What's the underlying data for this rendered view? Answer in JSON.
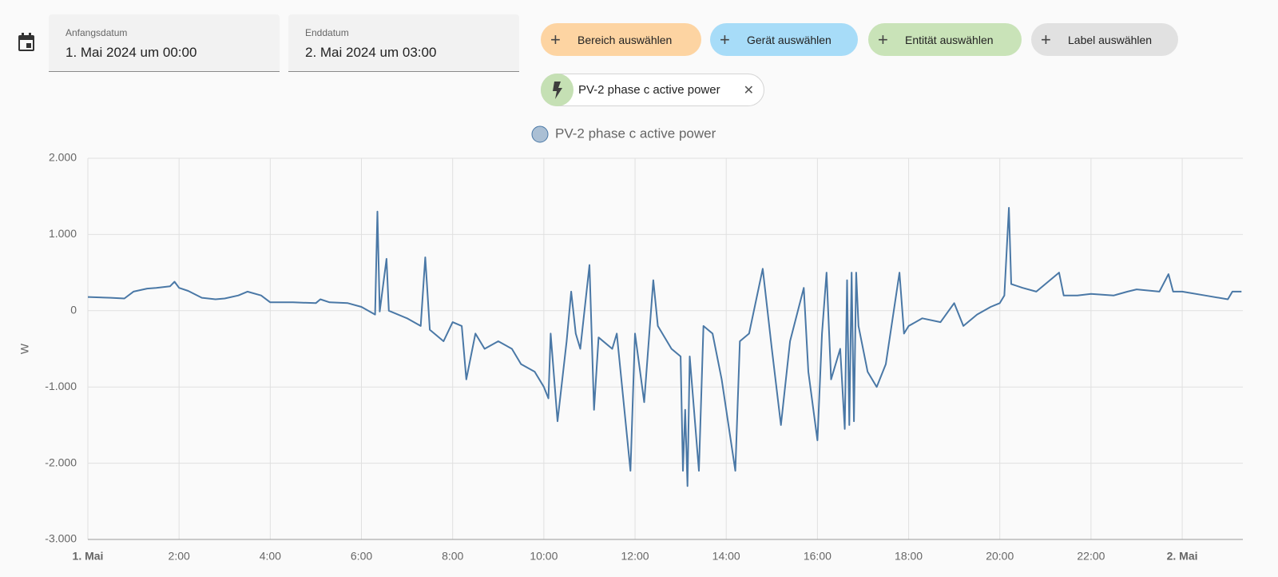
{
  "date_range": {
    "start_label": "Anfangsdatum",
    "start": "1. Mai 2024 um 00:00",
    "end_label": "Enddatum",
    "end": "2. Mai 2024 um 03:00"
  },
  "target_buttons": [
    "Bereich auswählen",
    "Gerät auswählen",
    "Entität auswählen",
    "Label auswählen"
  ],
  "selected_entity": "PV-2 phase c active power",
  "chart_data": {
    "type": "line",
    "y_label": "W",
    "grid": true,
    "legend": "top",
    "xlim": [
      0,
      25.33
    ],
    "xticks": [
      {
        "value": 0,
        "label": "1. Mai"
      },
      {
        "value": 2,
        "label": "2:00"
      },
      {
        "value": 4,
        "label": "4:00"
      },
      {
        "value": 6,
        "label": "6:00"
      },
      {
        "value": 8,
        "label": "8:00"
      },
      {
        "value": 10,
        "label": "10:00"
      },
      {
        "value": 12,
        "label": "12:00"
      },
      {
        "value": 14,
        "label": "14:00"
      },
      {
        "value": 16,
        "label": "16:00"
      },
      {
        "value": 18,
        "label": "18:00"
      },
      {
        "value": 20,
        "label": "20:00"
      },
      {
        "value": 22,
        "label": "22:00"
      },
      {
        "value": 24,
        "label": "2. Mai"
      }
    ],
    "ylim": [
      -3000,
      2000
    ],
    "yticks": [
      {
        "value": -3000,
        "label": "-3.000"
      },
      {
        "value": -2000,
        "label": "-2.000"
      },
      {
        "value": -1000,
        "label": "-1.000"
      },
      0,
      {
        "value": 1000,
        "label": "1.000"
      },
      {
        "value": 2000,
        "label": "2.000"
      }
    ],
    "x": [
      0,
      0.5,
      0.8,
      1.0,
      1.3,
      1.5,
      1.8,
      1.9,
      2.0,
      2.2,
      2.5,
      2.8,
      3.0,
      3.3,
      3.5,
      3.8,
      4.0,
      4.5,
      5.0,
      5.1,
      5.3,
      5.7,
      6.0,
      6.3,
      6.35,
      6.4,
      6.55,
      6.6,
      7.0,
      7.3,
      7.4,
      7.5,
      7.8,
      8.0,
      8.2,
      8.3,
      8.5,
      8.7,
      9.0,
      9.3,
      9.5,
      9.8,
      10.0,
      10.1,
      10.15,
      10.3,
      10.5,
      10.6,
      10.7,
      10.8,
      11.0,
      11.1,
      11.2,
      11.5,
      11.6,
      11.9,
      12.0,
      12.2,
      12.4,
      12.5,
      12.8,
      13.0,
      13.05,
      13.1,
      13.15,
      13.2,
      13.4,
      13.5,
      13.7,
      13.9,
      14.2,
      14.3,
      14.5,
      14.8,
      15.0,
      15.2,
      15.4,
      15.7,
      15.8,
      16.0,
      16.1,
      16.2,
      16.3,
      16.5,
      16.6,
      16.65,
      16.7,
      16.75,
      16.8,
      16.85,
      16.9,
      17.1,
      17.3,
      17.5,
      17.8,
      17.9,
      18.0,
      18.3,
      18.7,
      19.0,
      19.2,
      19.5,
      19.8,
      20.0,
      20.1,
      20.2,
      20.25,
      20.5,
      20.8,
      21.3,
      21.4,
      21.7,
      22.0,
      22.5,
      22.8,
      23.0,
      23.5,
      23.7,
      23.8,
      24.0,
      24.5,
      25.0,
      25.1,
      25.3
    ],
    "series": [
      {
        "name": "PV-2 phase c active power",
        "color": "#4a78a6",
        "values": [
          180,
          170,
          160,
          250,
          290,
          300,
          320,
          380,
          300,
          260,
          170,
          150,
          160,
          200,
          250,
          200,
          110,
          110,
          100,
          150,
          110,
          100,
          50,
          -50,
          1300,
          -10,
          680,
          0,
          -100,
          -200,
          700,
          -250,
          -400,
          -150,
          -200,
          -900,
          -300,
          -500,
          -400,
          -500,
          -700,
          -800,
          -1000,
          -1150,
          -300,
          -1450,
          -400,
          250,
          -300,
          -500,
          600,
          -1300,
          -350,
          -500,
          -300,
          -2100,
          -300,
          -1200,
          400,
          -200,
          -500,
          -600,
          -2100,
          -1300,
          -2300,
          -600,
          -2100,
          -200,
          -300,
          -900,
          -2100,
          -400,
          -300,
          550,
          -500,
          -1500,
          -400,
          300,
          -800,
          -1700,
          -300,
          500,
          -900,
          -500,
          -1550,
          400,
          -1500,
          500,
          -1450,
          500,
          -200,
          -800,
          -1000,
          -700,
          500,
          -300,
          -200,
          -100,
          -150,
          100,
          -200,
          -50,
          50,
          100,
          200,
          1350,
          350,
          300,
          250,
          500,
          200,
          200,
          220,
          200,
          250,
          280,
          250,
          480,
          250,
          250,
          200,
          150,
          250,
          250
        ]
      }
    ]
  }
}
